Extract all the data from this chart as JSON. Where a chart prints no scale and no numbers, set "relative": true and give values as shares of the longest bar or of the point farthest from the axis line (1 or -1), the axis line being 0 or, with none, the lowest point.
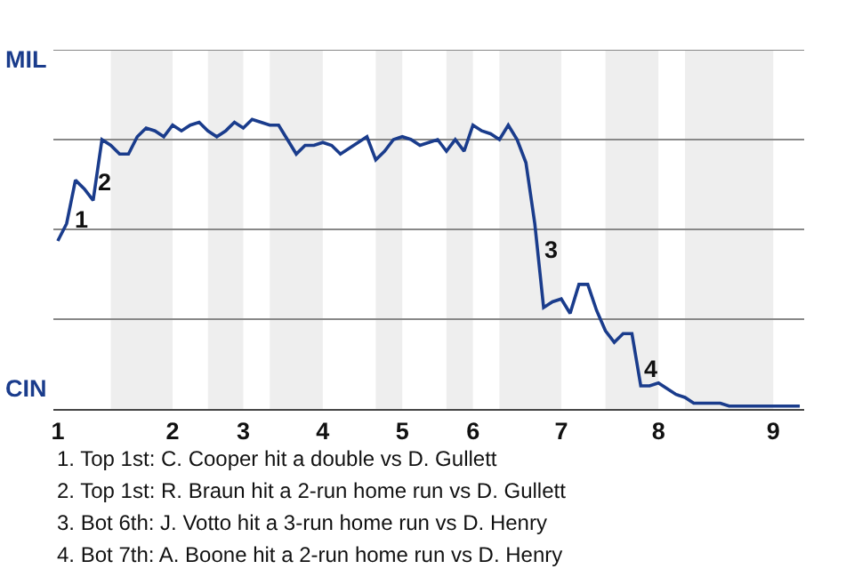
{
  "chart_data": {
    "type": "line",
    "relative": true,
    "categories": [
      "1",
      null,
      null,
      null,
      null,
      null,
      null,
      null,
      null,
      null,
      null,
      null,
      null,
      "2",
      null,
      null,
      null,
      null,
      null,
      null,
      null,
      "3",
      null,
      null,
      null,
      null,
      null,
      null,
      null,
      null,
      "4",
      null,
      null,
      null,
      null,
      null,
      null,
      null,
      null,
      "5",
      null,
      null,
      null,
      null,
      null,
      null,
      null,
      "6",
      null,
      null,
      null,
      null,
      null,
      null,
      null,
      null,
      null,
      "7",
      null,
      null,
      null,
      null,
      null,
      null,
      null,
      null,
      null,
      null,
      "8",
      null,
      null,
      null,
      null,
      null,
      null,
      null,
      null,
      null,
      null,
      null,
      null,
      "9",
      null,
      null,
      null
    ],
    "series": [
      {
        "color": "#1a3c8c",
        "values": [
          0.58,
          0.64,
          0.79,
          0.76,
          0.72,
          0.93,
          0.91,
          0.88,
          0.88,
          0.94,
          0.97,
          0.96,
          0.94,
          0.98,
          0.96,
          0.98,
          0.99,
          0.96,
          0.94,
          0.96,
          0.99,
          0.97,
          1,
          0.99,
          0.98,
          0.98,
          0.93,
          0.88,
          0.91,
          0.91,
          0.92,
          0.91,
          0.88,
          0.9,
          0.92,
          0.94,
          0.86,
          0.89,
          0.93,
          0.94,
          0.93,
          0.91,
          0.92,
          0.93,
          0.89,
          0.93,
          0.89,
          0.98,
          0.96,
          0.95,
          0.93,
          0.98,
          0.93,
          0.85,
          0.64,
          0.35,
          0.37,
          0.38,
          0.33,
          0.43,
          0.43,
          0.34,
          0.27,
          0.23,
          0.26,
          0.26,
          0.08,
          0.08,
          0.09,
          0.07,
          0.05,
          0.04,
          0.02,
          0.02,
          0.02,
          0.02,
          0.01,
          0.01,
          0.01,
          0.01,
          0.01,
          0.01,
          0.01,
          0.01,
          0.01
        ]
      }
    ],
    "marker": "none",
    "line_style": "solid",
    "ref_lines": [
      {
        "axis": "y",
        "value": 0.31,
        "color": "#888888"
      },
      {
        "axis": "y",
        "value": 0.62,
        "color": "#888888"
      },
      {
        "axis": "y",
        "value": 0.93,
        "color": "#888888"
      },
      {
        "axis": "y",
        "value": 1.24,
        "color": "#888888"
      }
    ],
    "annotations": [
      "MIL",
      "CIN",
      "1",
      "2",
      "3",
      "4",
      "1. Top 1st: C. Cooper hit a double vs D. Gullett",
      "2. Top 1st: R. Braun hit a 2-run home run vs D. Gullett",
      "3. Bot 6th: J. Votto hit a 3-run home run vs D. Henry",
      "4. Bot 7th: A. Boone hit a 2-run home run vs D. Henry"
    ]
  }
}
